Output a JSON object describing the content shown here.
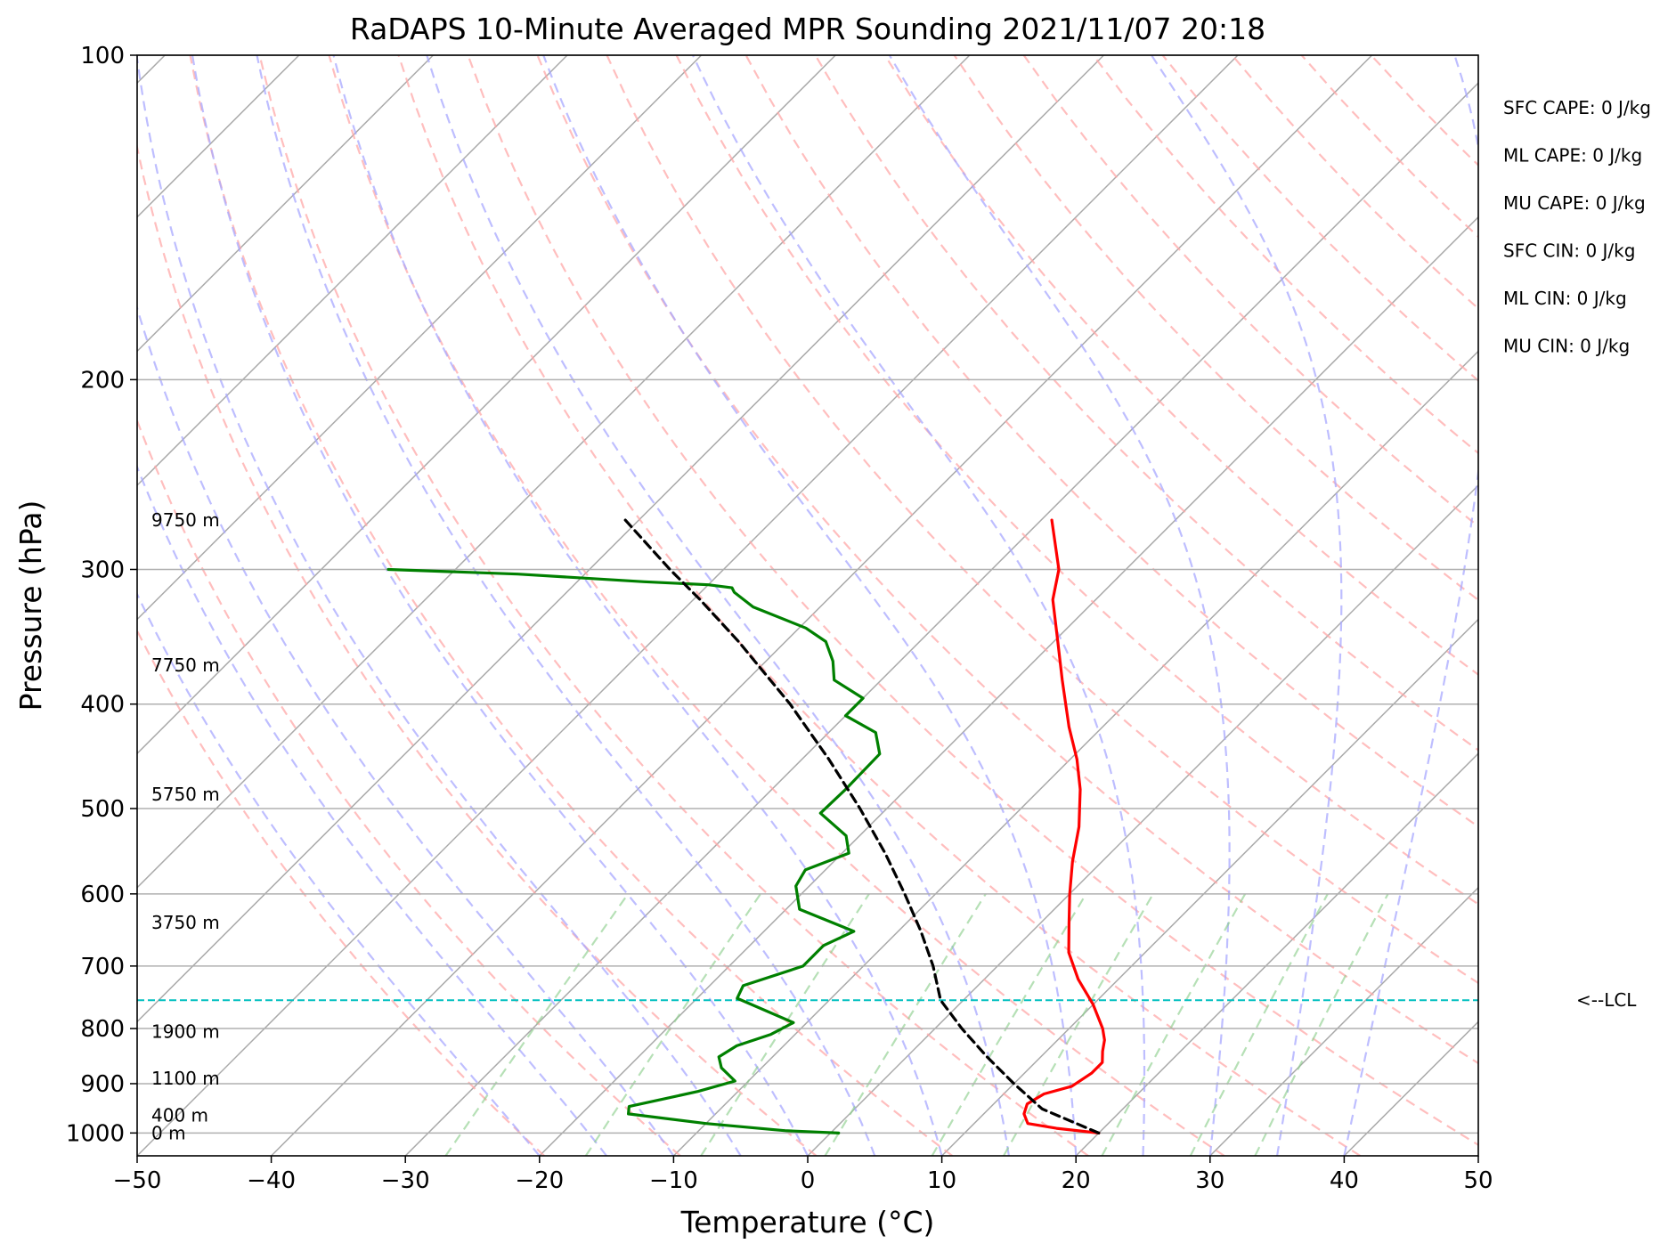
{
  "chart_data": {
    "type": "line",
    "title": "RaDAPS 10-Minute Averaged MPR Sounding 2021/11/07 20:18",
    "xlabel": "Temperature (°C)",
    "ylabel": "Pressure (hPa)",
    "xlim": [
      -50,
      50
    ],
    "ylim": [
      1050,
      100
    ],
    "y_scale": "log",
    "skew": true,
    "grid": true,
    "x_ticks": [
      -50,
      -40,
      -30,
      -20,
      -10,
      0,
      10,
      20,
      30,
      40,
      50
    ],
    "x_tick_labels": [
      "−50",
      "−40",
      "−30",
      "−20",
      "−10",
      "0",
      "10",
      "20",
      "30",
      "40",
      "50"
    ],
    "y_ticks": [
      100,
      200,
      300,
      400,
      500,
      600,
      700,
      800,
      900,
      1000
    ],
    "y_tick_labels": [
      "100",
      "200",
      "300",
      "400",
      "500",
      "600",
      "700",
      "800",
      "900",
      "1000"
    ],
    "series": [
      {
        "key": "temperature",
        "color": "#ff0000",
        "points": [
          {
            "p": 1000,
            "t": 20.0
          },
          {
            "p": 990,
            "t": 16.5
          },
          {
            "p": 980,
            "t": 14.0
          },
          {
            "p": 960,
            "t": 13.0
          },
          {
            "p": 940,
            "t": 12.5
          },
          {
            "p": 920,
            "t": 13.0
          },
          {
            "p": 905,
            "t": 14.5
          },
          {
            "p": 880,
            "t": 15.0
          },
          {
            "p": 860,
            "t": 15.0
          },
          {
            "p": 840,
            "t": 14.2
          },
          {
            "p": 820,
            "t": 13.5
          },
          {
            "p": 800,
            "t": 12.5
          },
          {
            "p": 760,
            "t": 10.0
          },
          {
            "p": 720,
            "t": 7.0
          },
          {
            "p": 680,
            "t": 4.3
          },
          {
            "p": 640,
            "t": 2.2
          },
          {
            "p": 600,
            "t": 0.0
          },
          {
            "p": 560,
            "t": -2.2
          },
          {
            "p": 520,
            "t": -4.3
          },
          {
            "p": 480,
            "t": -7.0
          },
          {
            "p": 450,
            "t": -9.5
          },
          {
            "p": 420,
            "t": -12.5
          },
          {
            "p": 380,
            "t": -16.5
          },
          {
            "p": 350,
            "t": -19.7
          },
          {
            "p": 320,
            "t": -23.2
          },
          {
            "p": 300,
            "t": -25.0
          },
          {
            "p": 270,
            "t": -29.2
          }
        ]
      },
      {
        "key": "dewpoint",
        "color": "#008000",
        "points": [
          {
            "p": 1000,
            "t": 0.6
          },
          {
            "p": 995,
            "t": -3.6
          },
          {
            "p": 980,
            "t": -10.0
          },
          {
            "p": 960,
            "t": -16.5
          },
          {
            "p": 945,
            "t": -17.0
          },
          {
            "p": 915,
            "t": -13.0
          },
          {
            "p": 895,
            "t": -11.0
          },
          {
            "p": 870,
            "t": -13.0
          },
          {
            "p": 850,
            "t": -14.0
          },
          {
            "p": 830,
            "t": -13.5
          },
          {
            "p": 810,
            "t": -11.8
          },
          {
            "p": 790,
            "t": -11.0
          },
          {
            "p": 750,
            "t": -17.0
          },
          {
            "p": 730,
            "t": -17.5
          },
          {
            "p": 700,
            "t": -14.5
          },
          {
            "p": 670,
            "t": -14.5
          },
          {
            "p": 650,
            "t": -13.3
          },
          {
            "p": 620,
            "t": -19.0
          },
          {
            "p": 590,
            "t": -21.0
          },
          {
            "p": 570,
            "t": -21.5
          },
          {
            "p": 550,
            "t": -19.5
          },
          {
            "p": 530,
            "t": -21.0
          },
          {
            "p": 505,
            "t": -24.6
          },
          {
            "p": 480,
            "t": -24.5
          },
          {
            "p": 445,
            "t": -24.6
          },
          {
            "p": 425,
            "t": -26.5
          },
          {
            "p": 410,
            "t": -30.0
          },
          {
            "p": 395,
            "t": -30.0
          },
          {
            "p": 380,
            "t": -33.5
          },
          {
            "p": 365,
            "t": -35.0
          },
          {
            "p": 350,
            "t": -37.0
          },
          {
            "p": 340,
            "t": -39.5
          },
          {
            "p": 325,
            "t": -45.0
          },
          {
            "p": 315,
            "t": -47.5
          },
          {
            "p": 312,
            "t": -48.0
          },
          {
            "p": 310,
            "t": -50.0
          },
          {
            "p": 308,
            "t": -55.0
          },
          {
            "p": 303,
            "t": -65.0
          },
          {
            "p": 300,
            "t": -75.0
          }
        ]
      },
      {
        "key": "parcel",
        "color": "#000000",
        "dashed": true,
        "points": [
          {
            "p": 1000,
            "t": 20.0
          },
          {
            "p": 950,
            "t": 14.0
          },
          {
            "p": 900,
            "t": 10.0
          },
          {
            "p": 850,
            "t": 6.0
          },
          {
            "p": 800,
            "t": 2.0
          },
          {
            "p": 753,
            "t": -1.7
          },
          {
            "p": 700,
            "t": -4.8
          },
          {
            "p": 650,
            "t": -8.3
          },
          {
            "p": 600,
            "t": -12.3
          },
          {
            "p": 550,
            "t": -16.8
          },
          {
            "p": 500,
            "t": -22.0
          },
          {
            "p": 450,
            "t": -28.0
          },
          {
            "p": 400,
            "t": -35.0
          },
          {
            "p": 350,
            "t": -43.5
          },
          {
            "p": 320,
            "t": -49.5
          },
          {
            "p": 300,
            "t": -54.0
          },
          {
            "p": 270,
            "t": -61.0
          }
        ]
      }
    ],
    "lcl_pressure": 753,
    "lcl_label": "<--LCL",
    "height_labels": [
      {
        "text": "9750 m",
        "p": 270
      },
      {
        "text": "7750 m",
        "p": 368
      },
      {
        "text": "5750 m",
        "p": 485
      },
      {
        "text": "3750 m",
        "p": 638
      },
      {
        "text": "1900 m",
        "p": 805
      },
      {
        "text": "1100 m",
        "p": 890
      },
      {
        "text": "400 m",
        "p": 963
      },
      {
        "text": "0 m",
        "p": 1000
      }
    ],
    "stability_indices": [
      "SFC CAPE: 0 J/kg",
      "ML CAPE: 0 J/kg",
      "MU CAPE: 0 J/kg",
      "SFC CIN: 0 J/kg",
      "ML CIN: 0 J/kg",
      "MU CIN: 0 J/kg"
    ],
    "colors": {
      "grid": "#b0b0b0",
      "isotherm": "#a9a9a9",
      "dry_adiabat": "#ffa8a8",
      "moist_adiabat": "#a8a8ff",
      "mixing_ratio": "#8fcf8f",
      "lcl_line": "#00bfbf"
    }
  }
}
